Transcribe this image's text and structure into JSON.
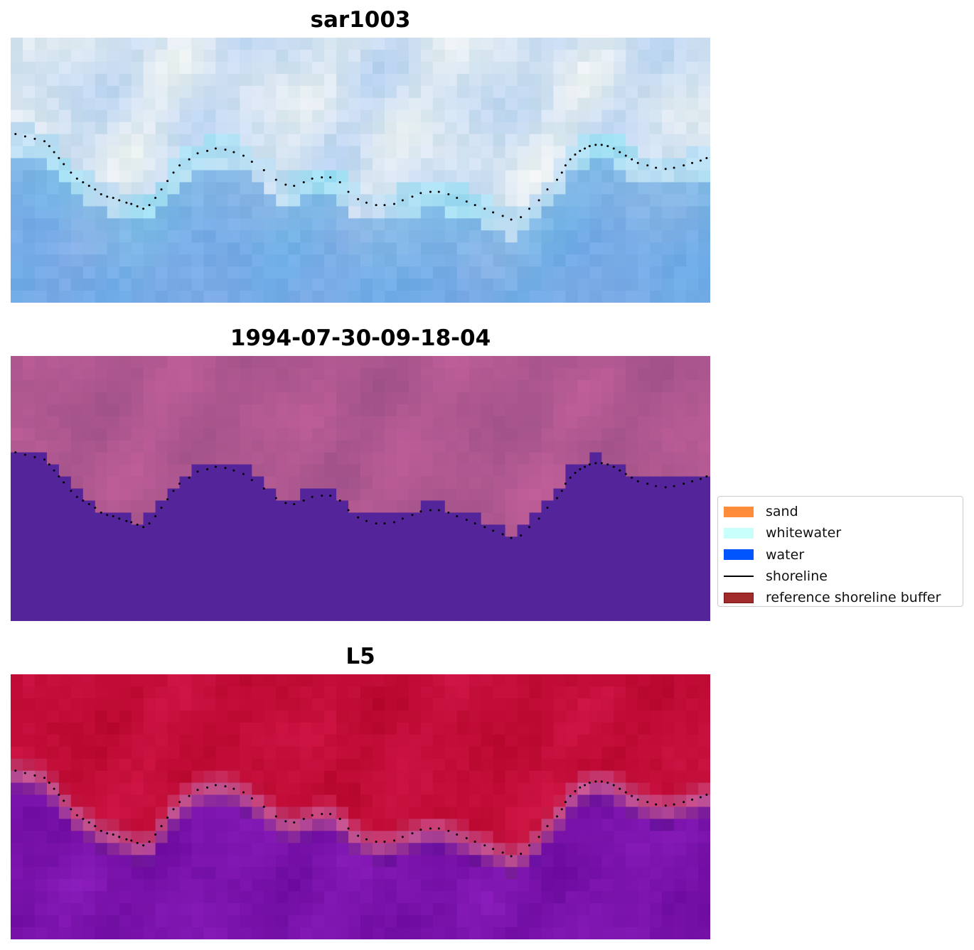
{
  "panels": [
    {
      "id": "sar1003",
      "title": "sar1003",
      "style": "rgb"
    },
    {
      "id": "classified",
      "title": "1994-07-30-09-18-04",
      "style": "classification"
    },
    {
      "id": "l5",
      "title": "L5",
      "style": "probability"
    }
  ],
  "legend": {
    "items": [
      {
        "label": "sand",
        "color": "#ff8c3a",
        "kind": "patch"
      },
      {
        "label": "whitewater",
        "color": "#c8fffb",
        "kind": "patch"
      },
      {
        "label": "water",
        "color": "#0055ff",
        "kind": "patch"
      },
      {
        "label": "shoreline",
        "color": "#000000",
        "kind": "line"
      },
      {
        "label": "reference shoreline buffer",
        "color": "#a12b2b",
        "kind": "patch"
      }
    ]
  },
  "colors": {
    "land_class": "#ab5c8e",
    "water_class": "#53249a",
    "prob_land": "#bd0a33",
    "prob_water": "#5c069a",
    "shoreline_dots": "#000000"
  },
  "chart_data": {
    "type": "heatmap",
    "grid": {
      "cols": 58,
      "rows": 22
    },
    "shoreline": {
      "x": [
        0.4,
        1.2,
        2.0,
        2.8,
        3.2,
        3.6,
        4.0,
        4.4,
        5.0,
        5.5,
        6.0,
        6.5,
        7.0,
        7.5,
        8.0,
        8.5,
        9.0,
        9.6,
        10.0,
        10.5,
        11.0,
        11.5,
        12.0,
        12.5,
        13.0,
        13.5,
        14.0,
        14.8,
        15.5,
        16.3,
        17.0,
        17.8,
        18.5,
        19.3,
        20.0,
        21.0,
        22.0,
        22.8,
        23.5,
        24.3,
        25.0,
        25.8,
        26.5,
        27.3,
        28.0,
        28.8,
        29.5,
        30.3,
        31.0,
        31.8,
        32.5,
        33.3,
        34.0,
        34.8,
        35.5,
        36.3,
        37.0,
        37.8,
        38.5,
        39.3,
        40.0,
        40.8,
        41.5,
        42.3,
        43.0,
        43.8,
        44.5,
        45.3,
        45.7,
        46.0,
        46.4,
        46.8,
        47.2,
        47.6,
        48.0,
        48.5,
        49.0,
        49.5,
        50.0,
        50.5,
        51.0,
        51.5,
        52.0,
        52.8,
        53.5,
        54.3,
        55.0,
        55.8,
        56.5,
        57.2,
        57.7
      ],
      "y": [
        8.0,
        8.2,
        8.4,
        8.6,
        9.0,
        9.5,
        10.0,
        10.5,
        11.2,
        11.7,
        12.0,
        12.3,
        12.6,
        13.0,
        13.2,
        13.3,
        13.5,
        13.7,
        13.8,
        14.0,
        14.2,
        13.9,
        13.3,
        12.6,
        11.9,
        11.2,
        10.6,
        10.1,
        9.6,
        9.4,
        9.2,
        9.3,
        9.5,
        9.8,
        10.3,
        11.0,
        11.8,
        12.2,
        12.3,
        12.0,
        11.7,
        11.6,
        11.6,
        12.0,
        12.8,
        13.4,
        13.7,
        13.9,
        13.9,
        13.8,
        13.5,
        13.2,
        12.9,
        12.8,
        12.8,
        13.0,
        13.3,
        13.6,
        13.9,
        14.2,
        14.5,
        14.8,
        15.1,
        14.9,
        14.2,
        13.5,
        12.6,
        11.8,
        11.2,
        10.6,
        10.1,
        9.7,
        9.4,
        9.2,
        9.0,
        8.9,
        8.9,
        9.0,
        9.2,
        9.5,
        9.8,
        10.1,
        10.4,
        10.6,
        10.8,
        10.9,
        10.8,
        10.6,
        10.4,
        10.2,
        10.0
      ]
    }
  }
}
